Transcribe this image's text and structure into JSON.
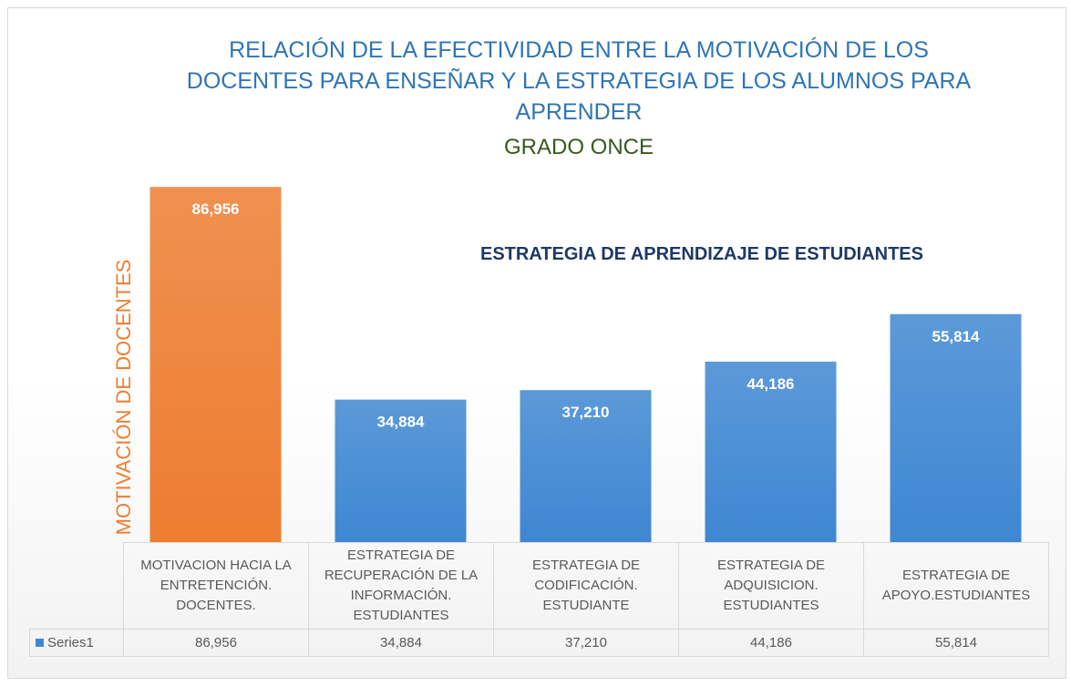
{
  "chart_data": {
    "type": "bar",
    "title": "RELACIÓN DE LA EFECTIVIDAD ENTRE LA MOTIVACIÓN DE LOS DOCENTES PARA ENSEÑAR Y LA ESTRATEGIA DE LOS ALUMNOS PARA APRENDER",
    "subtitle": "GRADO ONCE",
    "annotation": "ESTRATEGIA DE APRENDIZAJE DE ESTUDIANTES",
    "y_label": "MOTIVACIÓN DE DOCENTES",
    "categories": [
      "MOTIVACION HACIA LA ENTRETENCIÓN. DOCENTES.",
      "ESTRATEGIA DE RECUPERACIÓN DE LA INFORMACIÓN. ESTUDIANTES",
      "ESTRATEGIA DE CODIFICACIÓN. ESTUDIANTE",
      "ESTRATEGIA DE ADQUISICION. ESTUDIANTES",
      "ESTRATEGIA DE APOYO.ESTUDIANTES"
    ],
    "series": [
      {
        "name": "Series1",
        "color": "#3f87d2",
        "values": [
          86.956,
          34.884,
          37.21,
          44.186,
          55.814
        ],
        "value_labels": [
          "86,956",
          "34,884",
          "37,210",
          "44,186",
          "55,814"
        ],
        "colors": [
          "#ed7d31",
          "#3f87d2",
          "#3f87d2",
          "#3f87d2",
          "#3f87d2"
        ]
      }
    ],
    "ylim": [
      0,
      87
    ],
    "data_table": true
  }
}
